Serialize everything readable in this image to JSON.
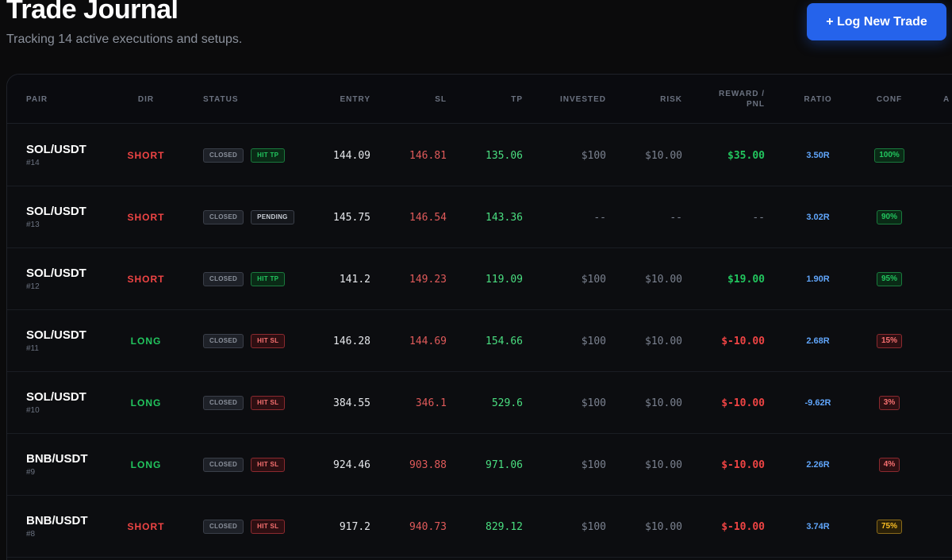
{
  "header": {
    "title": "Trade Journal",
    "subtitle": "Tracking 14 active executions and setups.",
    "log_button": "+ Log New Trade"
  },
  "table": {
    "columns": {
      "pair": "PAIR",
      "dir": "DIR",
      "status": "STATUS",
      "entry": "ENTRY",
      "sl": "SL",
      "tp": "TP",
      "invested": "INVESTED",
      "risk": "RISK",
      "reward_line1": "REWARD /",
      "reward_line2": "PNL",
      "ratio": "RATIO",
      "conf": "CONF",
      "next": "A"
    },
    "rows": [
      {
        "pair": "SOL/USDT",
        "id": "#14",
        "dir": "SHORT",
        "dir_class": "short",
        "state": "CLOSED",
        "outcome": "HIT TP",
        "outcome_class": "tp",
        "entry": "144.09",
        "sl": "146.81",
        "tp": "135.06",
        "invested": "$100",
        "risk": "$10.00",
        "pnl": "$35.00",
        "pnl_class": "pos",
        "ratio": "3.50R",
        "conf": "100%",
        "conf_class": "high"
      },
      {
        "pair": "SOL/USDT",
        "id": "#13",
        "dir": "SHORT",
        "dir_class": "short",
        "state": "CLOSED",
        "outcome": "PENDING",
        "outcome_class": "pending",
        "entry": "145.75",
        "sl": "146.54",
        "tp": "143.36",
        "invested": "--",
        "risk": "--",
        "pnl": "--",
        "pnl_class": "none",
        "ratio": "3.02R",
        "conf": "90%",
        "conf_class": "high"
      },
      {
        "pair": "SOL/USDT",
        "id": "#12",
        "dir": "SHORT",
        "dir_class": "short",
        "state": "CLOSED",
        "outcome": "HIT TP",
        "outcome_class": "tp",
        "entry": "141.2",
        "sl": "149.23",
        "tp": "119.09",
        "invested": "$100",
        "risk": "$10.00",
        "pnl": "$19.00",
        "pnl_class": "pos",
        "ratio": "1.90R",
        "conf": "95%",
        "conf_class": "high"
      },
      {
        "pair": "SOL/USDT",
        "id": "#11",
        "dir": "LONG",
        "dir_class": "long",
        "state": "CLOSED",
        "outcome": "HIT SL",
        "outcome_class": "sl",
        "entry": "146.28",
        "sl": "144.69",
        "tp": "154.66",
        "invested": "$100",
        "risk": "$10.00",
        "pnl": "$-10.00",
        "pnl_class": "neg",
        "ratio": "2.68R",
        "conf": "15%",
        "conf_class": "low"
      },
      {
        "pair": "SOL/USDT",
        "id": "#10",
        "dir": "LONG",
        "dir_class": "long",
        "state": "CLOSED",
        "outcome": "HIT SL",
        "outcome_class": "sl",
        "entry": "384.55",
        "sl": "346.1",
        "tp": "529.6",
        "invested": "$100",
        "risk": "$10.00",
        "pnl": "$-10.00",
        "pnl_class": "neg",
        "ratio": "-9.62R",
        "conf": "3%",
        "conf_class": "low"
      },
      {
        "pair": "BNB/USDT",
        "id": "#9",
        "dir": "LONG",
        "dir_class": "long",
        "state": "CLOSED",
        "outcome": "HIT SL",
        "outcome_class": "sl",
        "entry": "924.46",
        "sl": "903.88",
        "tp": "971.06",
        "invested": "$100",
        "risk": "$10.00",
        "pnl": "$-10.00",
        "pnl_class": "neg",
        "ratio": "2.26R",
        "conf": "4%",
        "conf_class": "low"
      },
      {
        "pair": "BNB/USDT",
        "id": "#8",
        "dir": "SHORT",
        "dir_class": "short",
        "state": "CLOSED",
        "outcome": "HIT SL",
        "outcome_class": "sl",
        "entry": "917.2",
        "sl": "940.73",
        "tp": "829.12",
        "invested": "$100",
        "risk": "$10.00",
        "pnl": "$-10.00",
        "pnl_class": "neg",
        "ratio": "3.74R",
        "conf": "75%",
        "conf_class": "mid"
      }
    ]
  }
}
